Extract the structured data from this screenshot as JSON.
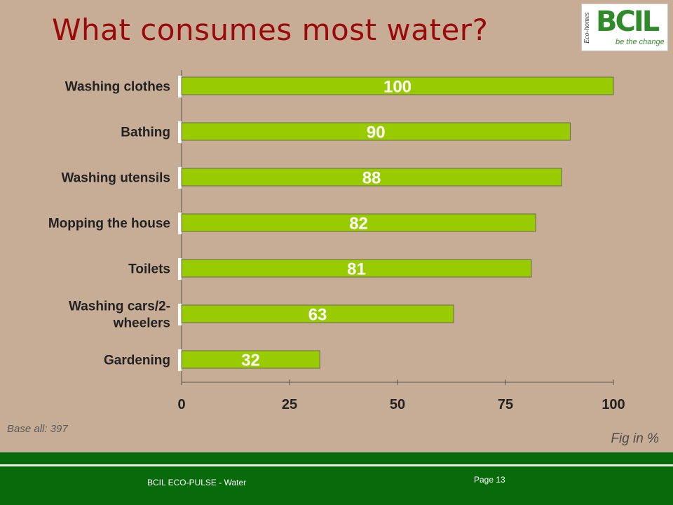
{
  "title": "What consumes most water?",
  "logo": {
    "brand": "BCIL",
    "tagline": "be the change",
    "side_text": "Eco-homes"
  },
  "base_note": "Base all: 397",
  "fig_note": "Fig in %",
  "footer": {
    "text": "BCIL ECO-PULSE - Water",
    "page": "Page 13"
  },
  "colors": {
    "bar": "#99cc00",
    "title": "#9b0a0a",
    "background": "#c8ad96",
    "footer": "#096a0c"
  },
  "chart_data": {
    "type": "bar",
    "orientation": "horizontal",
    "categories": [
      [
        "Washing clothes"
      ],
      [
        "Bathing"
      ],
      [
        "Washing utensils"
      ],
      [
        "Mopping the house"
      ],
      [
        "Toilets"
      ],
      [
        "Washing cars/2-",
        "wheelers"
      ],
      [
        "Gardening"
      ]
    ],
    "values": [
      100,
      90,
      88,
      82,
      81,
      63,
      32
    ],
    "xticks": [
      0,
      25,
      50,
      75,
      100
    ],
    "xlim": [
      0,
      100
    ],
    "data_labels": true,
    "grid": false
  }
}
